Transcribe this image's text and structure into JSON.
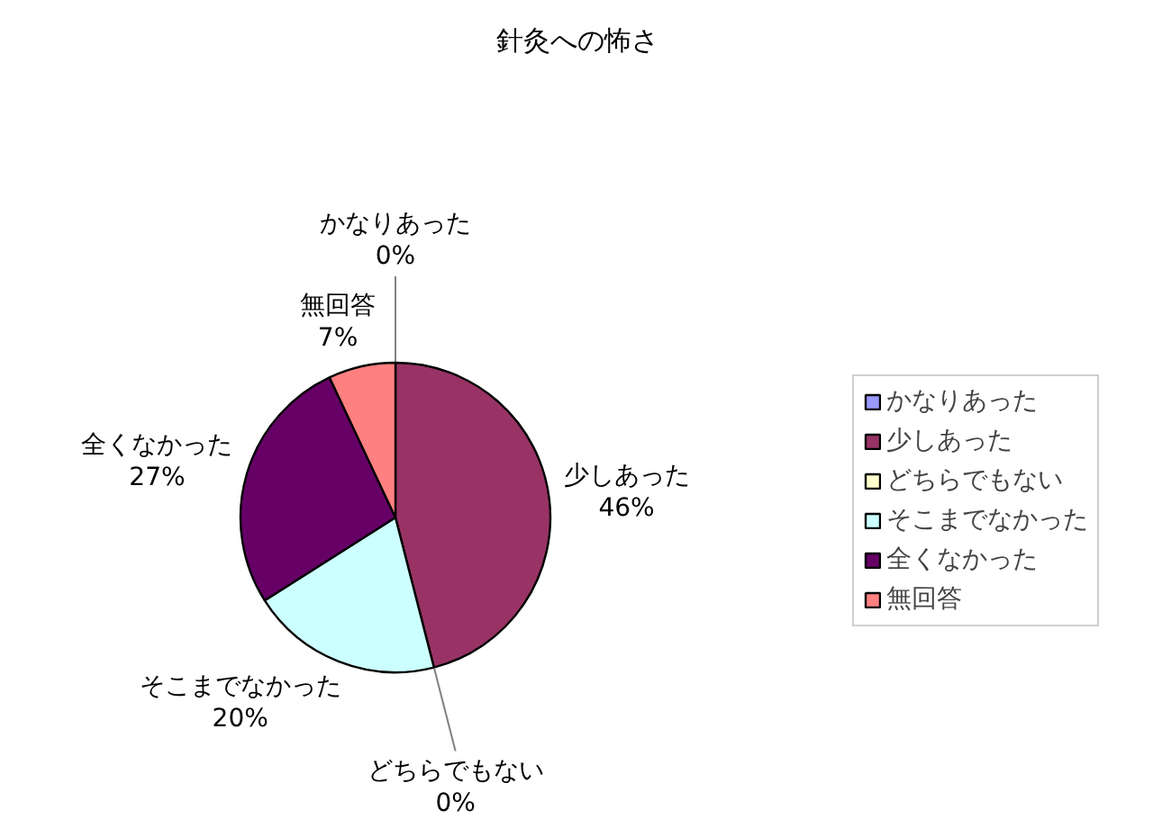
{
  "chart_data": {
    "type": "pie",
    "title": "針灸への怖さ",
    "categories": [
      "かなりあった",
      "少しあった",
      "どちらでもない",
      "そこまでなかった",
      "全くなかった",
      "無回答"
    ],
    "values": [
      0,
      46,
      0,
      20,
      27,
      7
    ],
    "colors": [
      "#9999ff",
      "#993366",
      "#ffffcc",
      "#ccffff",
      "#660066",
      "#ff8080"
    ],
    "value_labels": [
      "0%",
      "46%",
      "0%",
      "20%",
      "27%",
      "7%"
    ],
    "legend": "right"
  }
}
